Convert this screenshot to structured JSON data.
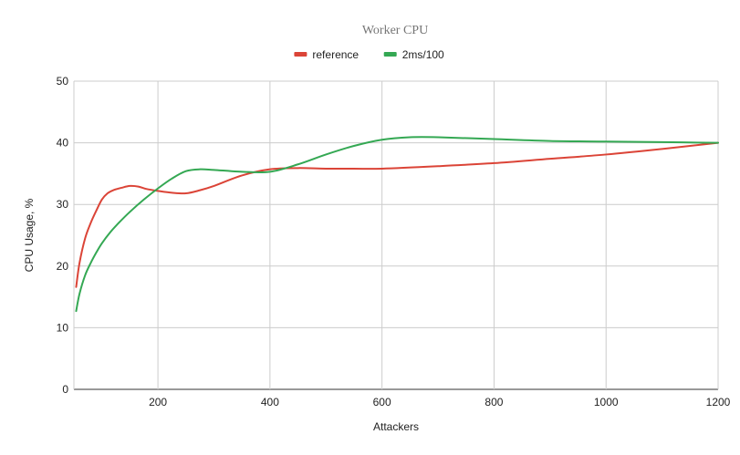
{
  "chart_data": {
    "type": "line",
    "title": "Worker CPU",
    "xlabel": "Attackers",
    "ylabel": "CPU Usage, %",
    "xlim": [
      50,
      1200
    ],
    "ylim": [
      0,
      50
    ],
    "x_ticks": [
      200,
      400,
      600,
      800,
      1000,
      1200
    ],
    "y_ticks": [
      0,
      10,
      20,
      30,
      40,
      50
    ],
    "grid": true,
    "legend_position": "top",
    "series": [
      {
        "name": "reference",
        "color": "#db4437",
        "x": [
          54,
          60,
          70,
          80,
          90,
          100,
          110,
          120,
          135,
          150,
          165,
          180,
          200,
          225,
          250,
          275,
          300,
          350,
          400,
          450,
          500,
          550,
          600,
          700,
          800,
          900,
          1000,
          1100,
          1200
        ],
        "y": [
          16.6,
          20.5,
          24.5,
          27,
          29,
          30.8,
          31.8,
          32.3,
          32.7,
          33,
          32.9,
          32.5,
          32.2,
          31.9,
          31.8,
          32.3,
          33,
          34.7,
          35.7,
          35.9,
          35.8,
          35.8,
          35.8,
          36.2,
          36.7,
          37.4,
          38.1,
          39,
          40
        ]
      },
      {
        "name": "2ms/100",
        "color": "#34a853",
        "x": [
          54,
          60,
          70,
          80,
          90,
          100,
          115,
          130,
          150,
          175,
          200,
          225,
          250,
          275,
          300,
          350,
          400,
          450,
          500,
          550,
          600,
          650,
          700,
          800,
          900,
          1000,
          1100,
          1200
        ],
        "y": [
          12.7,
          15.5,
          18.5,
          20.5,
          22.2,
          23.7,
          25.5,
          27,
          28.8,
          30.8,
          32.6,
          34.2,
          35.4,
          35.7,
          35.6,
          35.3,
          35.3,
          36.5,
          38.1,
          39.5,
          40.5,
          40.9,
          40.9,
          40.6,
          40.3,
          40.2,
          40.1,
          40
        ]
      }
    ]
  }
}
